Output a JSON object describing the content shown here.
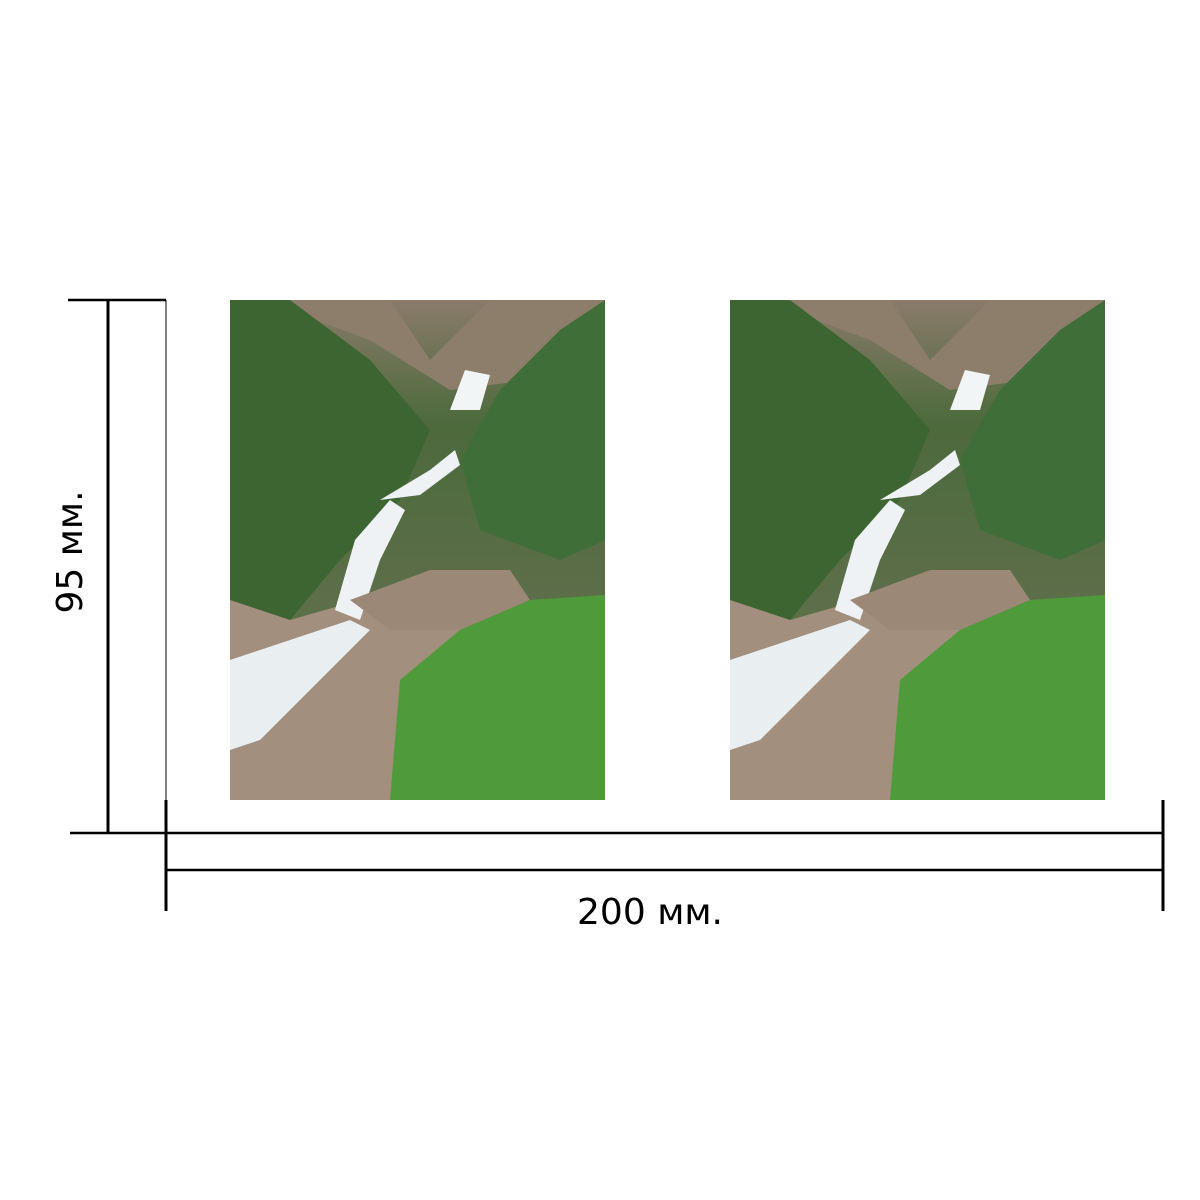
{
  "dimensions": {
    "height_label": "95 мм.",
    "width_label": "200 мм."
  },
  "photos": [
    {
      "subject": "waterfall-landscape"
    },
    {
      "subject": "waterfall-landscape"
    }
  ],
  "colors": {
    "line": "#000000",
    "foliage": "#3f6b35",
    "grass": "#4f9a3a",
    "rock": "#a89584",
    "water": "#eef2f4",
    "cliff": "#8a7b6a"
  }
}
